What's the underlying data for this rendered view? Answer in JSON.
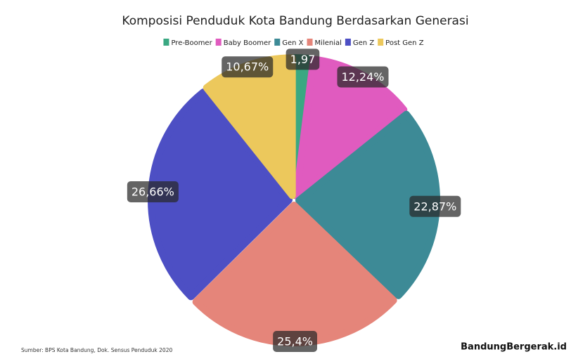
{
  "chart_data": {
    "type": "pie",
    "title": "Komposisi Penduduk Kota Bandung Berdasarkan Generasi",
    "categories": [
      "Pre-Boomer",
      "Baby Boomer",
      "Gen X",
      "Milenial",
      "Gen Z",
      "Post Gen Z"
    ],
    "values": [
      1.97,
      12.24,
      22.87,
      25.4,
      26.66,
      10.67
    ],
    "value_labels": [
      "1,97",
      "12,24%",
      "22,87%",
      "25,4%",
      "26,66%",
      "10,67%"
    ],
    "colors": [
      "#3aa882",
      "#e05bbf",
      "#3d8a96",
      "#e5857a",
      "#4d4fc4",
      "#ecc85c"
    ],
    "legend": "top",
    "source": "Sumber: BPS Kota Bandung, Dok. Sensus Penduduk 2020",
    "logo": "BandungBergerak.id"
  }
}
